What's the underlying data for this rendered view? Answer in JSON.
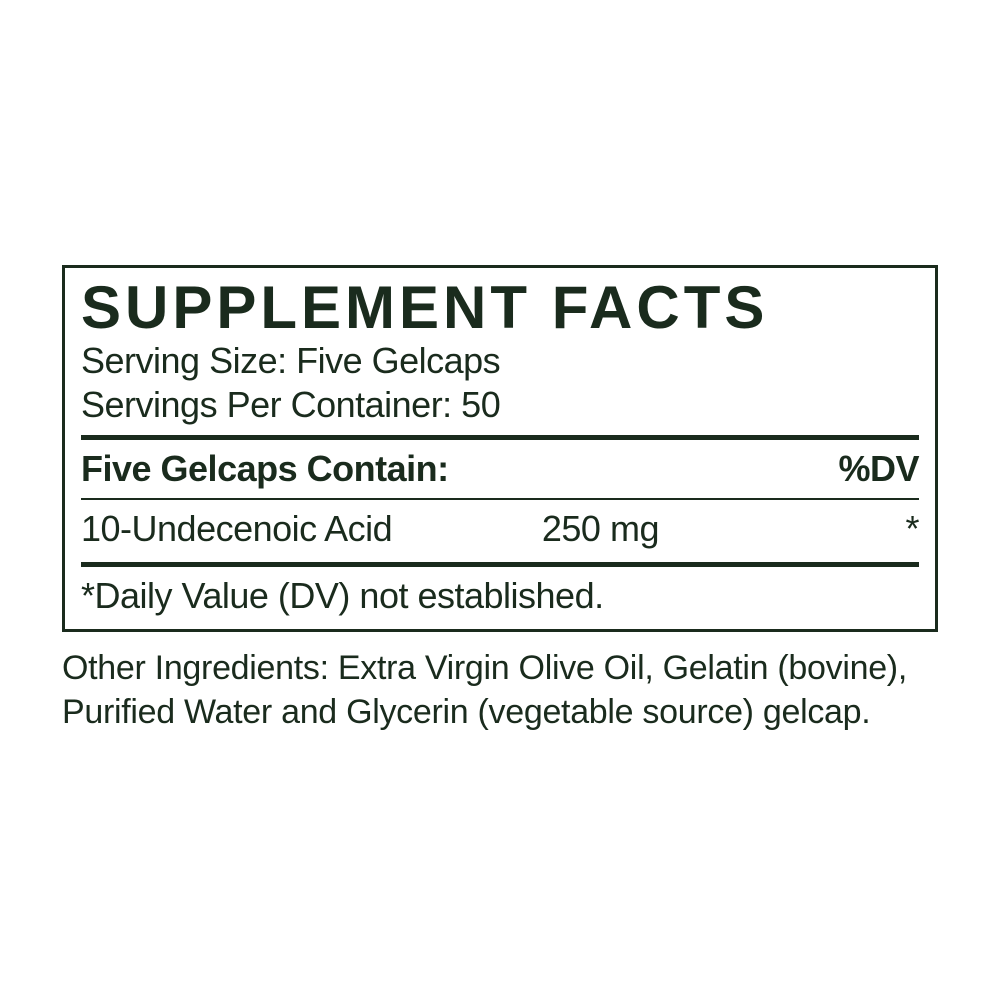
{
  "colors": {
    "text": "#1a2b1d",
    "background": "#ffffff"
  },
  "label": {
    "title": "SUPPLEMENT FACTS",
    "serving_size": "Serving Size: Five Gelcaps",
    "servings_per_container": "Servings Per Container: 50",
    "header_left": "Five Gelcaps Contain:",
    "header_right": "%DV",
    "rows": [
      {
        "name": "10-Undecenoic Acid",
        "amount": "250 mg",
        "dv": "*"
      }
    ],
    "footnote": "*Daily Value (DV) not established.",
    "other_ingredients": "Other Ingredients: Extra Virgin Olive Oil, Gelatin (bovine), Purified Water and Glycerin (vegetable source) gelcap."
  }
}
